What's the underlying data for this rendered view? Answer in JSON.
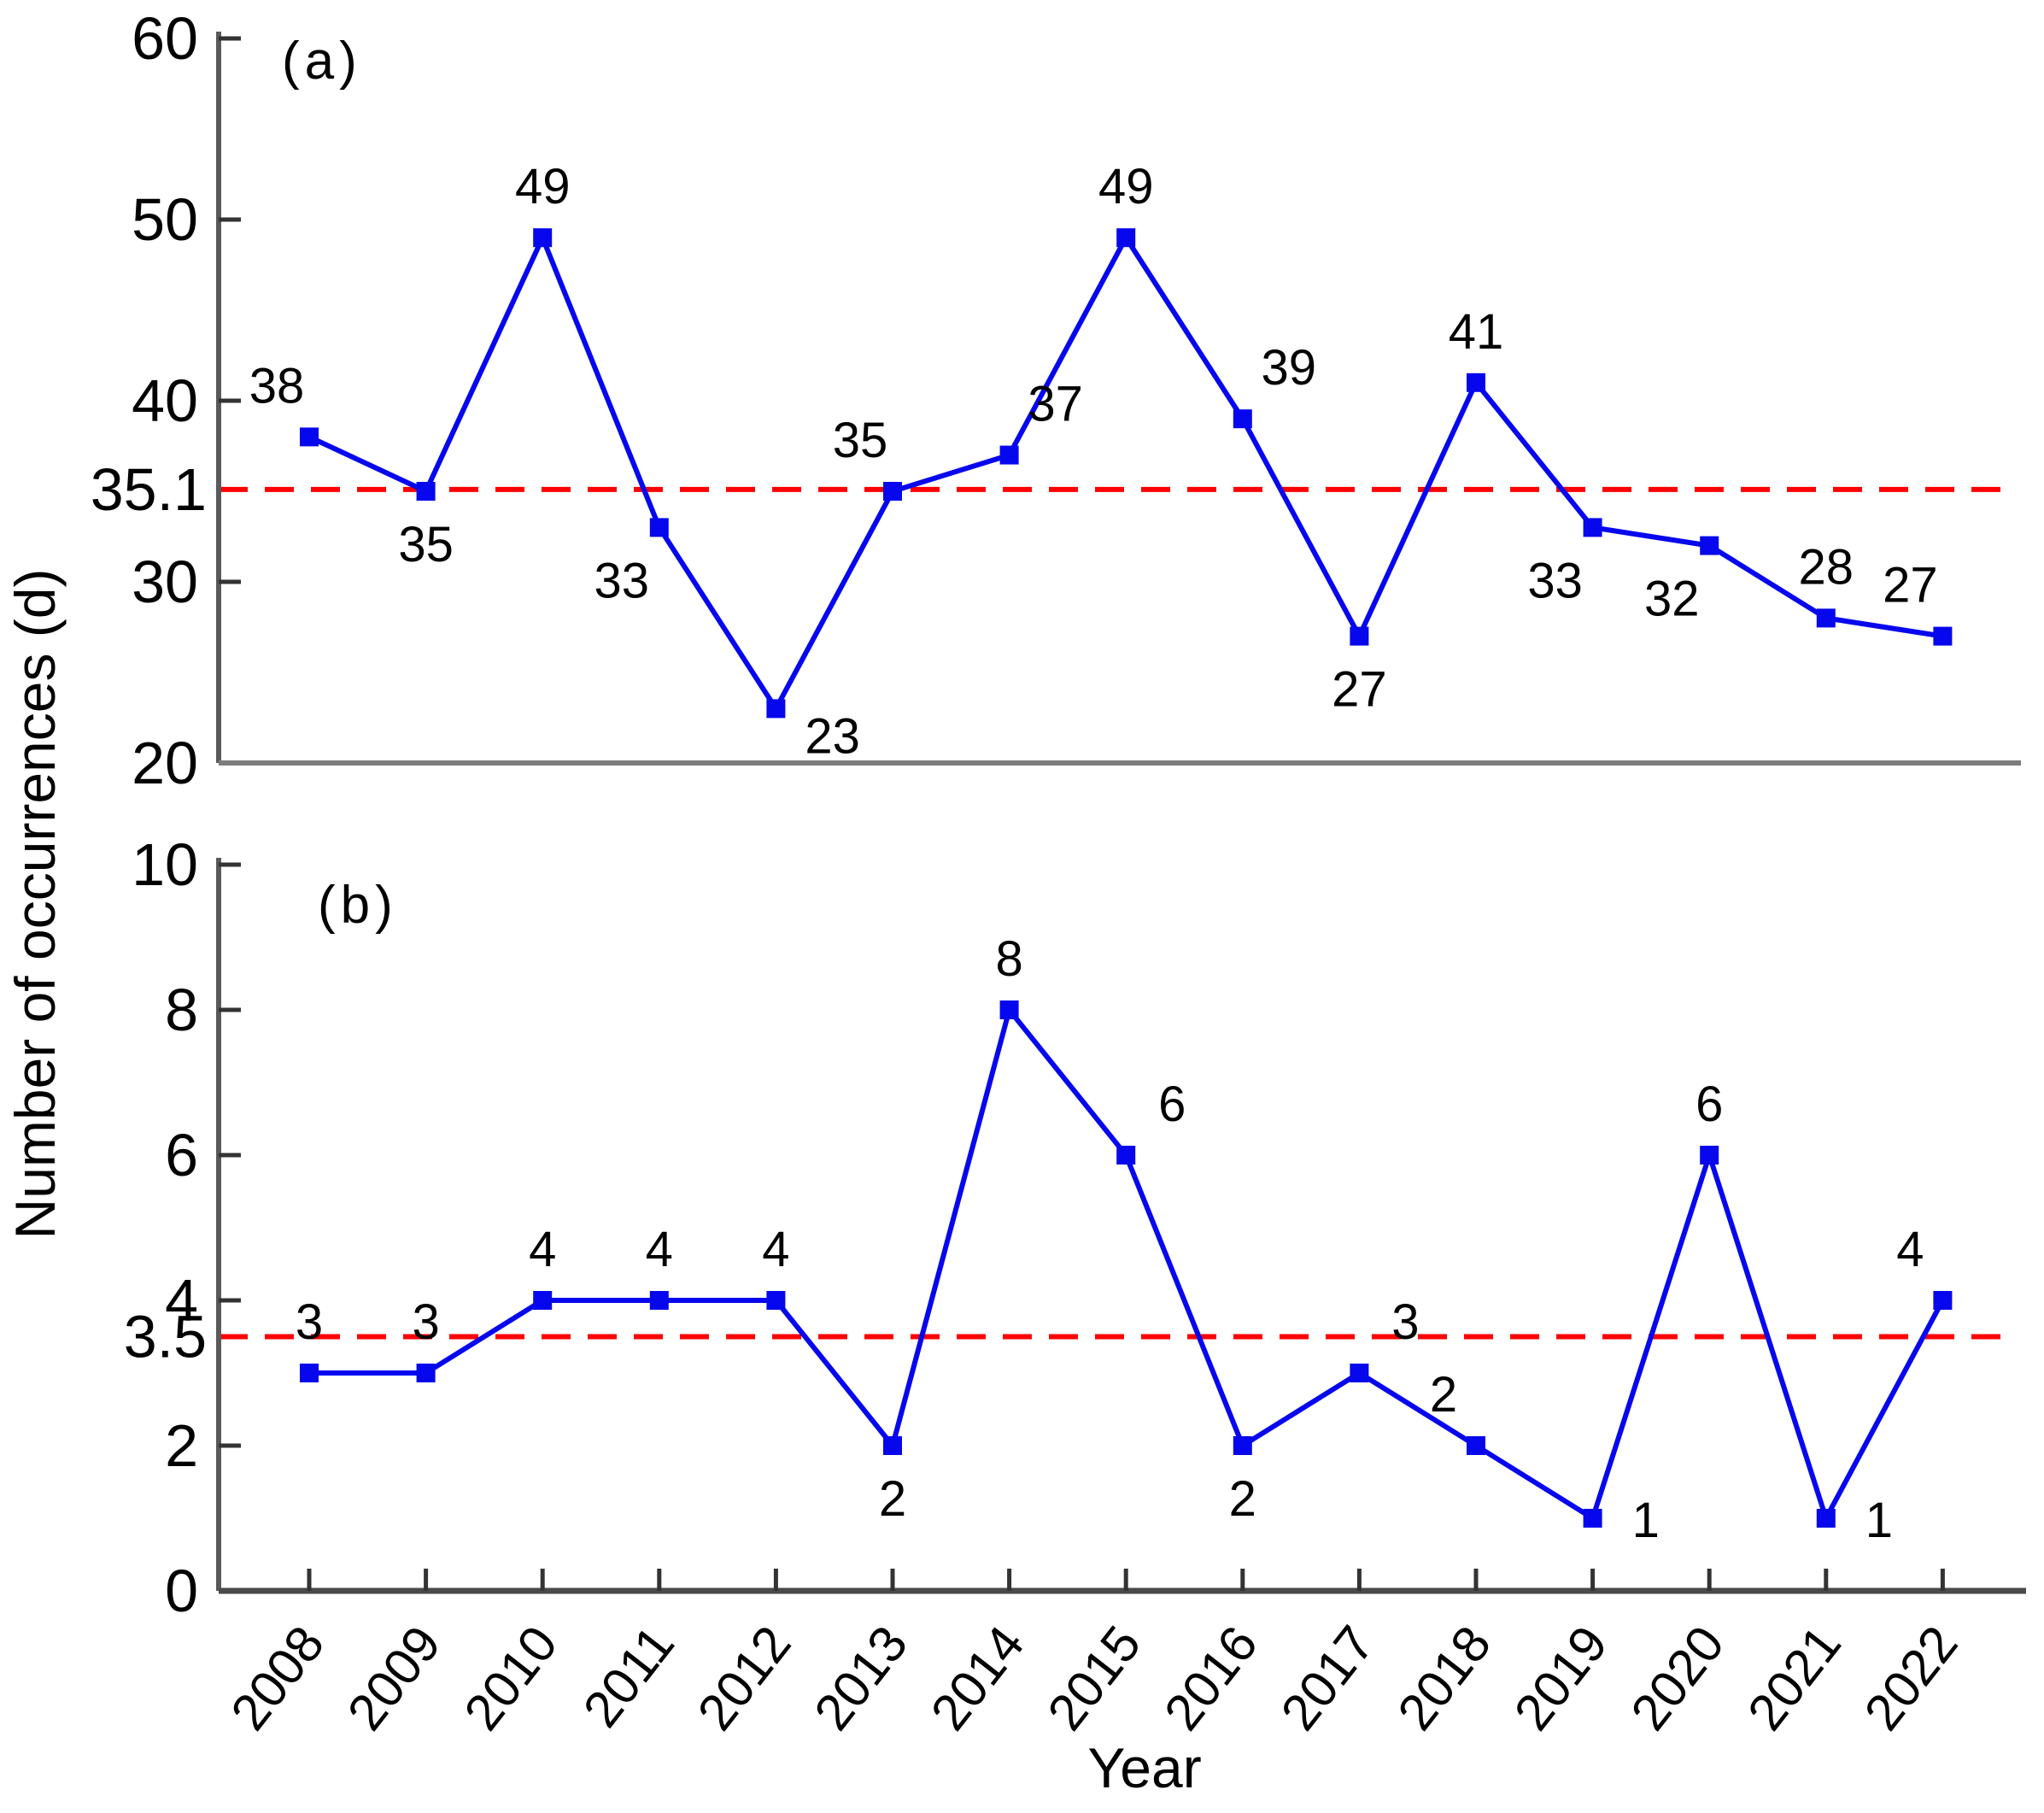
{
  "figure": {
    "ylabel": "Number of occurrences (d)",
    "xlabel": "Year",
    "background": "#ffffff",
    "colors": {
      "series": "#0707ee",
      "mean_line": "#ff0000",
      "axis": "#5a5a5a",
      "panel_divider": "#7d7d7d",
      "tick": "#333333",
      "text": "#000000"
    }
  },
  "chart_data": [
    {
      "type": "line",
      "tag": "(a)",
      "x": [
        2008,
        2009,
        2010,
        2011,
        2012,
        2013,
        2014,
        2015,
        2016,
        2017,
        2018,
        2019,
        2020,
        2021,
        2022
      ],
      "values": [
        38,
        35,
        49,
        33,
        23,
        35,
        37,
        49,
        39,
        27,
        41,
        33,
        32,
        28,
        27
      ],
      "mean_line": {
        "value": 35.1,
        "label": "35.1",
        "style": "dashed",
        "color": "#ff0000"
      },
      "ylim": [
        20,
        60
      ],
      "yticks": [
        20,
        30,
        40,
        50,
        60
      ],
      "marker": "filled-square",
      "line_color": "#0707ee",
      "grid": false,
      "label_pos": [
        "al",
        "b",
        "a",
        "bl",
        "br",
        "al",
        "ar",
        "a",
        "ar",
        "b",
        "a",
        "bl",
        "bl",
        "a",
        "al"
      ]
    },
    {
      "type": "line",
      "tag": "(b)",
      "x": [
        2008,
        2009,
        2010,
        2011,
        2012,
        2013,
        2014,
        2015,
        2016,
        2017,
        2018,
        2019,
        2020,
        2021,
        2022
      ],
      "values": [
        3,
        3,
        4,
        4,
        4,
        2,
        8,
        6,
        2,
        3,
        2,
        1,
        6,
        1,
        4
      ],
      "mean_line": {
        "value": 3.5,
        "label": "3.5",
        "style": "dashed",
        "color": "#ff0000"
      },
      "ylim": [
        0,
        10
      ],
      "yticks": [
        0,
        2,
        4,
        6,
        8,
        10
      ],
      "marker": "filled-square",
      "line_color": "#0707ee",
      "grid": false,
      "label_pos": [
        "a",
        "a",
        "a",
        "a",
        "a",
        "b",
        "a",
        "ar",
        "b",
        "ar",
        "al",
        "r",
        "a",
        "r",
        "al"
      ]
    }
  ]
}
